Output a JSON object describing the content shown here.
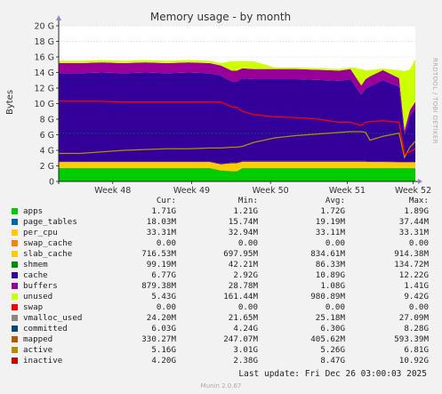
{
  "chart_data": {
    "type": "area",
    "title": "Memory usage - by month",
    "ylabel": "Bytes",
    "side_label": "RRDTOOL / TOBI OETIKER",
    "ylim": [
      0,
      20
    ],
    "y_ticks": [
      "0",
      "2 G",
      "4 G",
      "6 G",
      "8 G",
      "10 G",
      "12 G",
      "14 G",
      "16 G",
      "18 G",
      "20 G"
    ],
    "x_ticks": [
      "Week 48",
      "Week 49",
      "Week 50",
      "Week 51",
      "Week 52"
    ],
    "x": [
      0,
      2,
      4,
      6,
      8,
      10,
      12,
      14,
      15,
      16,
      16.5,
      17,
      18,
      20,
      22,
      24,
      26,
      27,
      28,
      28.4,
      28.8,
      30,
      31.5,
      32,
      32.5,
      33
    ],
    "colors": {
      "apps": "#00cc00",
      "page_tables": "#0066b3",
      "per_cpu": "#ff8000",
      "swap_cache": "#ffcc00",
      "slab_cache": "#330099",
      "shmem": "#990099",
      "cache": "#ccff00",
      "buffers": "#ff0000",
      "unused": "#888888",
      "swap": "#008f00",
      "vmalloc_used": "#00487d",
      "committed": "#b35a00",
      "mapped": "#b38f00",
      "active": "#6b006b",
      "inactive": "#8fb300"
    },
    "stack_series": [
      {
        "key": "apps",
        "name": "apps",
        "color": "#00cc00",
        "values": [
          1.7,
          1.7,
          1.7,
          1.7,
          1.7,
          1.7,
          1.7,
          1.7,
          1.4,
          1.3,
          1.3,
          1.7,
          1.7,
          1.7,
          1.7,
          1.7,
          1.7,
          1.7,
          1.7,
          1.7,
          1.7,
          1.7,
          1.7,
          1.7,
          1.7,
          1.7
        ]
      },
      {
        "key": "page_tables",
        "name": "page_tables",
        "color": "#0066b3",
        "values": [
          0.02,
          0.02,
          0.02,
          0.02,
          0.02,
          0.02,
          0.02,
          0.02,
          0.02,
          0.02,
          0.02,
          0.02,
          0.02,
          0.02,
          0.02,
          0.02,
          0.02,
          0.02,
          0.02,
          0.02,
          0.02,
          0.02,
          0.02,
          0.02,
          0.02,
          0.02
        ]
      },
      {
        "key": "per_cpu",
        "name": "per_cpu",
        "color": "#ff8000",
        "values": [
          0.03,
          0.03,
          0.03,
          0.03,
          0.03,
          0.03,
          0.03,
          0.03,
          0.03,
          0.03,
          0.03,
          0.03,
          0.03,
          0.03,
          0.03,
          0.03,
          0.03,
          0.03,
          0.03,
          0.03,
          0.03,
          0.03,
          0.03,
          0.03,
          0.03,
          0.03
        ]
      },
      {
        "key": "slab_cache",
        "name": "slab_cache",
        "color": "#ffcc00",
        "values": [
          0.75,
          0.75,
          0.75,
          0.75,
          0.75,
          0.75,
          0.75,
          0.75,
          0.75,
          1.0,
          1.0,
          0.8,
          0.8,
          0.8,
          0.8,
          0.8,
          0.8,
          0.8,
          0.8,
          0.8,
          0.75,
          0.75,
          0.72,
          0.72,
          0.72,
          0.72
        ]
      },
      {
        "key": "shmem",
        "name": "shmem",
        "color": "#330099",
        "values": [
          0.1,
          0.1,
          0.1,
          0.1,
          0.1,
          0.1,
          0.1,
          0.1,
          0.1,
          0.1,
          0.1,
          0.1,
          0.1,
          0.1,
          0.1,
          0.1,
          0.1,
          0.1,
          0.1,
          0.1,
          0.1,
          0.1,
          0.1,
          0.1,
          0.1,
          0.1
        ]
      },
      {
        "key": "cache",
        "name": "cache",
        "color": "#330099",
        "values": [
          11.3,
          11.3,
          11.4,
          11.3,
          11.4,
          11.3,
          11.4,
          11.3,
          11.3,
          10.4,
          10.4,
          10.6,
          10.5,
          10.5,
          10.5,
          10.4,
          10.3,
          10.5,
          8.5,
          9.3,
          9.6,
          10.4,
          9.6,
          3.4,
          5.8,
          6.8
        ]
      },
      {
        "key": "buffers",
        "name": "buffers",
        "color": "#990099",
        "values": [
          1.3,
          1.3,
          1.3,
          1.3,
          1.3,
          1.3,
          1.3,
          1.3,
          1.3,
          1.4,
          1.4,
          1.3,
          1.3,
          1.3,
          1.3,
          1.3,
          1.3,
          1.3,
          1.2,
          1.2,
          1.3,
          1.3,
          1.1,
          0.6,
          0.8,
          0.88
        ]
      },
      {
        "key": "unused",
        "name": "unused",
        "color": "#ccff00",
        "values": [
          0.3,
          0.3,
          0.3,
          0.3,
          0.3,
          0.3,
          0.3,
          0.3,
          0.3,
          1.2,
          1.2,
          0.9,
          1.0,
          0.2,
          0.2,
          0.2,
          0.2,
          0.2,
          2.1,
          1.1,
          0.8,
          0.2,
          1.0,
          7.6,
          5.2,
          5.43
        ]
      }
    ],
    "line_series": [
      {
        "key": "committed",
        "name": "committed",
        "color": "#00487d",
        "values": [
          6.2,
          6.2,
          6.2,
          6.2,
          6.2,
          6.2,
          6.2,
          6.2,
          6.2,
          6.2,
          6.2,
          6.2,
          6.2,
          6.2,
          6.2,
          6.2,
          6.2,
          6.2,
          6.2,
          6.2,
          6.2,
          6.2,
          6.2,
          6.2,
          6.1,
          6.03
        ]
      },
      {
        "key": "active",
        "name": "active",
        "color": "#b38f00",
        "values": [
          3.6,
          3.6,
          3.8,
          4.0,
          4.1,
          4.2,
          4.2,
          4.3,
          4.3,
          4.4,
          4.4,
          4.5,
          5.0,
          5.6,
          5.9,
          6.1,
          6.3,
          6.4,
          6.4,
          6.3,
          5.3,
          5.8,
          6.2,
          3.1,
          4.4,
          5.16
        ]
      },
      {
        "key": "inactive",
        "name": "inactive",
        "color": "#ff0000",
        "values": [
          10.3,
          10.3,
          10.3,
          10.2,
          10.2,
          10.2,
          10.2,
          10.2,
          10.2,
          9.6,
          9.5,
          9.0,
          8.6,
          8.3,
          8.2,
          8.0,
          7.6,
          7.6,
          7.2,
          7.6,
          7.7,
          7.8,
          7.6,
          3.5,
          3.8,
          4.2
        ]
      }
    ],
    "legend": {
      "headers": [
        "Cur:",
        "Min:",
        "Avg:",
        "Max:"
      ],
      "rows": [
        {
          "name": "apps",
          "color": "#00cc00",
          "cur": "1.71G",
          "min": "1.21G",
          "avg": "1.72G",
          "max": "1.89G"
        },
        {
          "name": "page_tables",
          "color": "#0066b3",
          "cur": "18.03M",
          "min": "15.74M",
          "avg": "19.19M",
          "max": "37.44M"
        },
        {
          "name": "per_cpu",
          "color": "#ffcc00",
          "cur": "33.31M",
          "min": "32.94M",
          "avg": "33.11M",
          "max": "33.31M"
        },
        {
          "name": "swap_cache",
          "color": "#ff8000",
          "cur": "0.00",
          "min": "0.00",
          "avg": "0.00",
          "max": "0.00"
        },
        {
          "name": "slab_cache",
          "color": "#ffcc00",
          "cur": "716.53M",
          "min": "697.95M",
          "avg": "834.61M",
          "max": "914.38M"
        },
        {
          "name": "shmem",
          "color": "#008f00",
          "cur": "99.19M",
          "min": "42.21M",
          "avg": "86.33M",
          "max": "134.72M"
        },
        {
          "name": "cache",
          "color": "#330099",
          "cur": "6.77G",
          "min": "2.92G",
          "avg": "10.89G",
          "max": "12.22G"
        },
        {
          "name": "buffers",
          "color": "#990099",
          "cur": "879.38M",
          "min": "28.78M",
          "avg": "1.08G",
          "max": "1.41G"
        },
        {
          "name": "unused",
          "color": "#ccff00",
          "cur": "5.43G",
          "min": "161.44M",
          "avg": "980.89M",
          "max": "9.42G"
        },
        {
          "name": "swap",
          "color": "#ff0000",
          "cur": "0.00",
          "min": "0.00",
          "avg": "0.00",
          "max": "0.00"
        },
        {
          "name": "vmalloc_used",
          "color": "#888888",
          "cur": "24.20M",
          "min": "21.65M",
          "avg": "25.18M",
          "max": "27.09M"
        },
        {
          "name": "committed",
          "color": "#00487d",
          "cur": "6.03G",
          "min": "4.24G",
          "avg": "6.30G",
          "max": "8.28G"
        },
        {
          "name": "mapped",
          "color": "#b35a00",
          "cur": "330.27M",
          "min": "247.07M",
          "avg": "405.62M",
          "max": "593.39M"
        },
        {
          "name": "active",
          "color": "#b38f00",
          "cur": "5.16G",
          "min": "3.01G",
          "avg": "5.26G",
          "max": "6.81G"
        },
        {
          "name": "inactive",
          "color": "#cc0000",
          "cur": "4.20G",
          "min": "2.38G",
          "avg": "8.47G",
          "max": "10.92G"
        }
      ]
    },
    "last_update": "Last update: Fri Dec 26 03:00:03 2025",
    "version": "Munin 2.0.67"
  }
}
